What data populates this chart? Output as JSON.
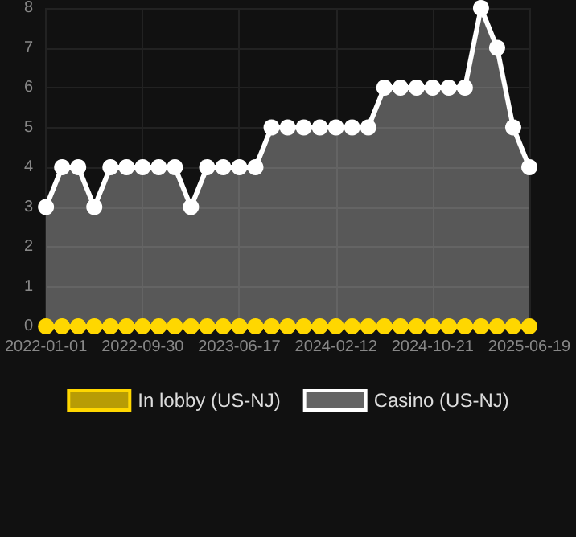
{
  "chart_data": {
    "type": "area",
    "categories": [
      "2022-01-01",
      null,
      null,
      null,
      null,
      null,
      "2022-09-30",
      null,
      null,
      null,
      null,
      null,
      "2023-06-17",
      null,
      null,
      null,
      null,
      null,
      "2024-02-12",
      null,
      null,
      null,
      null,
      null,
      "2024-10-21",
      null,
      null,
      null,
      null,
      null,
      "2025-06-19"
    ],
    "series": [
      {
        "name": "In lobby (US-NJ)",
        "type": "line",
        "color": "#ffd700",
        "values": [
          0,
          0,
          0,
          0,
          0,
          0,
          0,
          0,
          0,
          0,
          0,
          0,
          0,
          0,
          0,
          0,
          0,
          0,
          0,
          0,
          0,
          0,
          0,
          0,
          0,
          0,
          0,
          0,
          0,
          0,
          0
        ]
      },
      {
        "name": "Casino (US-NJ)",
        "color": "#ffffff",
        "values": [
          3,
          4,
          4,
          3,
          4,
          4,
          4,
          4,
          4,
          3,
          4,
          4,
          4,
          4,
          5,
          5,
          5,
          5,
          5,
          5,
          5,
          6,
          6,
          6,
          6,
          6,
          6,
          8,
          7,
          5,
          4
        ]
      }
    ],
    "ylim": [
      0,
      8
    ],
    "yticks": [
      0,
      1,
      2,
      3,
      4,
      5,
      6,
      7,
      8
    ],
    "grid": true,
    "legend": "bottom",
    "marker": "circle"
  }
}
